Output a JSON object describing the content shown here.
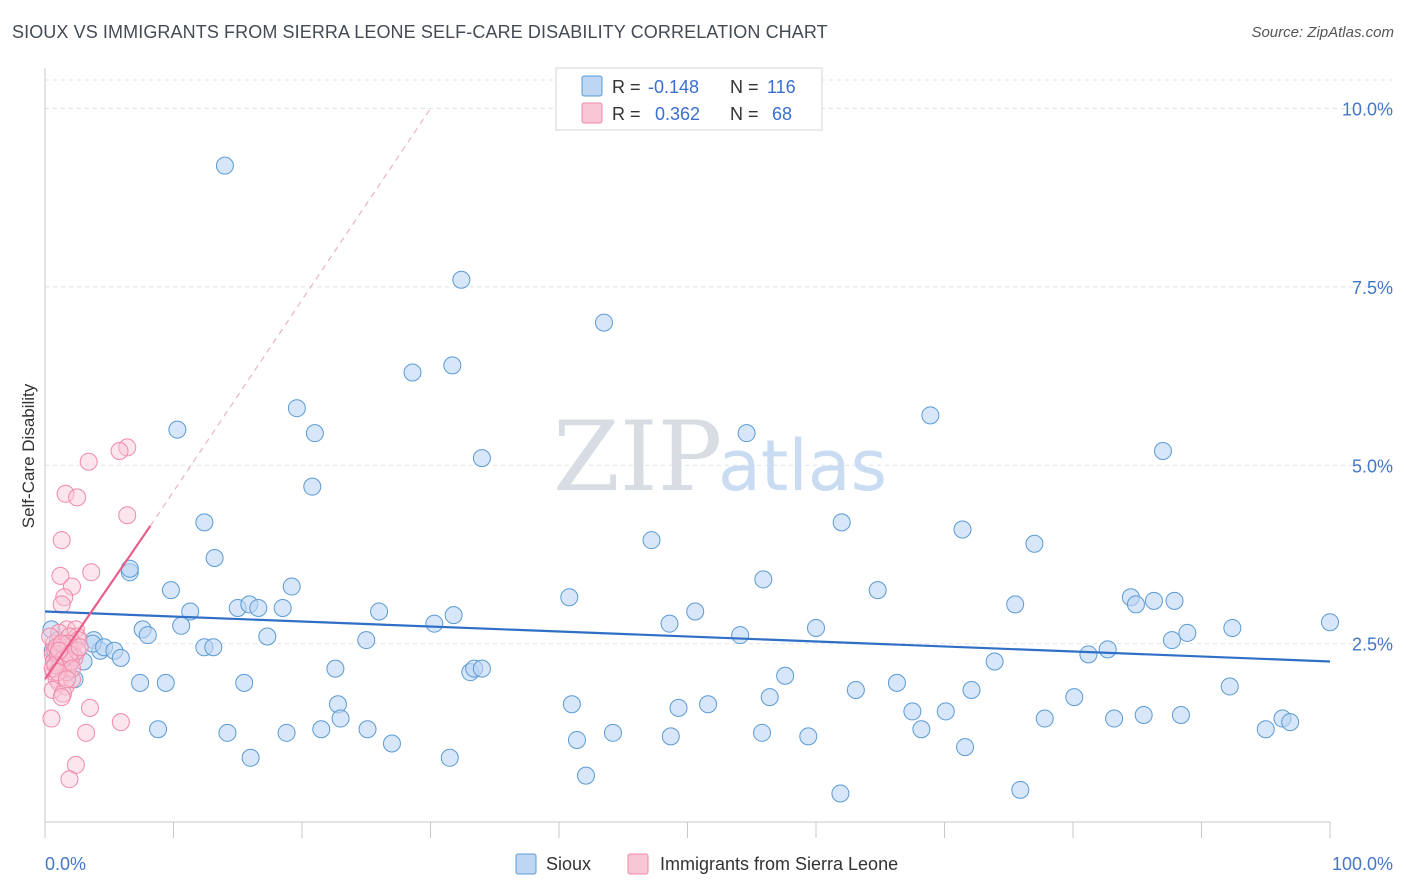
{
  "title": "SIOUX VS IMMIGRANTS FROM SIERRA LEONE SELF-CARE DISABILITY CORRELATION CHART",
  "source": "Source: ZipAtlas.com",
  "watermark": {
    "zip": "ZIP",
    "atlas": "atlas"
  },
  "colors": {
    "sioux": "#5b9bd5",
    "sioux_fill": "#bcd6f3",
    "sl": "#f08aa8",
    "sl_fill": "#f9c6d6",
    "sioux_line": "#2f6fc6",
    "sl_line": "#e8608a"
  },
  "stats": [
    {
      "r_label": "R = ",
      "r": "-0.148",
      "n_label": "N = ",
      "n": "116"
    },
    {
      "r_label": "R = ",
      "r": "0.362",
      "n_label": "N = ",
      "n": "68"
    }
  ],
  "chart_data": {
    "type": "scatter",
    "title": "SIOUX VS IMMIGRANTS FROM SIERRA LEONE SELF-CARE DISABILITY CORRELATION CHART",
    "ylabel": "Self-Care Disability",
    "xlabel": "",
    "xlim": [
      0,
      100
    ],
    "ylim": [
      0,
      10.4
    ],
    "x_tick_labels": [
      "0.0%",
      "100.0%"
    ],
    "y_ticks": [
      2.5,
      5.0,
      7.5,
      10.0
    ],
    "y_tick_labels": [
      "2.5%",
      "5.0%",
      "7.5%",
      "10.0%"
    ],
    "grid": "horizontal dashed",
    "legend": {
      "position": "bottom-center",
      "entries": [
        "Sioux",
        "Immigrants from Sierra Leone"
      ]
    },
    "series": [
      {
        "name": "Sioux",
        "trend": {
          "x": [
            0,
            100
          ],
          "y": [
            2.95,
            2.25
          ]
        },
        "points": [
          [
            14,
            9.2
          ],
          [
            32.4,
            7.6
          ],
          [
            43.5,
            7.0
          ],
          [
            28.6,
            6.3
          ],
          [
            31.7,
            6.4
          ],
          [
            19.6,
            5.8
          ],
          [
            21,
            5.45
          ],
          [
            10.3,
            5.5
          ],
          [
            34,
            5.1
          ],
          [
            54.6,
            5.45
          ],
          [
            68.9,
            5.7
          ],
          [
            87,
            5.2
          ],
          [
            20.8,
            4.7
          ],
          [
            12.4,
            4.2
          ],
          [
            47.2,
            3.95
          ],
          [
            62,
            4.2
          ],
          [
            71.4,
            4.1
          ],
          [
            77,
            3.9
          ],
          [
            13.2,
            3.7
          ],
          [
            6.6,
            3.5
          ],
          [
            6.6,
            3.55
          ],
          [
            9.8,
            3.25
          ],
          [
            19.2,
            3.3
          ],
          [
            40.8,
            3.15
          ],
          [
            55.9,
            3.4
          ],
          [
            64.8,
            3.25
          ],
          [
            75.5,
            3.05
          ],
          [
            84.5,
            3.15
          ],
          [
            84.9,
            3.05
          ],
          [
            86.3,
            3.1
          ],
          [
            87.9,
            3.1
          ],
          [
            11.3,
            2.95
          ],
          [
            15,
            3.0
          ],
          [
            15.9,
            3.05
          ],
          [
            16.6,
            3.0
          ],
          [
            18.5,
            3.0
          ],
          [
            26,
            2.95
          ],
          [
            31.8,
            2.9
          ],
          [
            50.6,
            2.95
          ],
          [
            3.8,
            2.55
          ],
          [
            7.6,
            2.7
          ],
          [
            8,
            2.62
          ],
          [
            10.6,
            2.75
          ],
          [
            17.3,
            2.6
          ],
          [
            30.3,
            2.78
          ],
          [
            48.6,
            2.78
          ],
          [
            54.1,
            2.62
          ],
          [
            60,
            2.72
          ],
          [
            88.9,
            2.65
          ],
          [
            92.4,
            2.72
          ],
          [
            100,
            2.8
          ],
          [
            4.3,
            2.4
          ],
          [
            3.7,
            2.5
          ],
          [
            4.6,
            2.45
          ],
          [
            5.4,
            2.4
          ],
          [
            5.9,
            2.3
          ],
          [
            12.4,
            2.45
          ],
          [
            13.1,
            2.45
          ],
          [
            25,
            2.55
          ],
          [
            82.7,
            2.42
          ],
          [
            81.2,
            2.35
          ],
          [
            87.7,
            2.55
          ],
          [
            3,
            2.25
          ],
          [
            2.3,
            2.0
          ],
          [
            7.4,
            1.95
          ],
          [
            9.4,
            1.95
          ],
          [
            15.5,
            1.95
          ],
          [
            22.6,
            2.15
          ],
          [
            33.1,
            2.1
          ],
          [
            33.4,
            2.15
          ],
          [
            34,
            2.15
          ],
          [
            57.6,
            2.05
          ],
          [
            66.3,
            1.95
          ],
          [
            73.9,
            2.25
          ],
          [
            0.5,
            2.7
          ],
          [
            1,
            2.55
          ],
          [
            0.6,
            2.4
          ],
          [
            1,
            2.3
          ],
          [
            1.2,
            2.2
          ],
          [
            22.8,
            1.65
          ],
          [
            41,
            1.65
          ],
          [
            49.3,
            1.6
          ],
          [
            51.6,
            1.65
          ],
          [
            56.4,
            1.75
          ],
          [
            63.1,
            1.85
          ],
          [
            67.5,
            1.55
          ],
          [
            70.1,
            1.55
          ],
          [
            72.1,
            1.85
          ],
          [
            80.1,
            1.75
          ],
          [
            83.2,
            1.45
          ],
          [
            85.5,
            1.5
          ],
          [
            88.4,
            1.5
          ],
          [
            92.2,
            1.9
          ],
          [
            95,
            1.3
          ],
          [
            96.3,
            1.45
          ],
          [
            96.9,
            1.4
          ],
          [
            8.8,
            1.3
          ],
          [
            14.2,
            1.25
          ],
          [
            18.8,
            1.25
          ],
          [
            21.5,
            1.3
          ],
          [
            23,
            1.45
          ],
          [
            25.1,
            1.3
          ],
          [
            27,
            1.1
          ],
          [
            41.4,
            1.15
          ],
          [
            44.2,
            1.25
          ],
          [
            48.7,
            1.2
          ],
          [
            55.8,
            1.25
          ],
          [
            59.4,
            1.2
          ],
          [
            68.2,
            1.3
          ],
          [
            71.6,
            1.05
          ],
          [
            77.8,
            1.45
          ],
          [
            16,
            0.9
          ],
          [
            31.5,
            0.9
          ],
          [
            42.1,
            0.65
          ],
          [
            61.9,
            0.4
          ],
          [
            75.9,
            0.45
          ]
        ]
      },
      {
        "name": "Immigrants from Sierra Leone",
        "trend": {
          "x": [
            0,
            8.2
          ],
          "y": [
            2.0,
            4.15
          ],
          "extended": {
            "x": [
              8.2,
              30
            ],
            "y": [
              4.15,
              10.0
            ]
          }
        },
        "points": [
          [
            6.4,
            5.25
          ],
          [
            5.8,
            5.2
          ],
          [
            3.4,
            5.05
          ],
          [
            1.6,
            4.6
          ],
          [
            2.5,
            4.55
          ],
          [
            6.4,
            4.3
          ],
          [
            1.3,
            3.95
          ],
          [
            1.2,
            3.45
          ],
          [
            3.6,
            3.5
          ],
          [
            2.1,
            3.3
          ],
          [
            1.5,
            3.15
          ],
          [
            1.3,
            3.05
          ],
          [
            1.7,
            2.7
          ],
          [
            1.1,
            2.65
          ],
          [
            2.4,
            2.7
          ],
          [
            2.5,
            2.6
          ],
          [
            2.2,
            2.5
          ],
          [
            0.7,
            2.5
          ],
          [
            0.6,
            2.35
          ],
          [
            1.7,
            2.4
          ],
          [
            2,
            2.45
          ],
          [
            2.2,
            2.35
          ],
          [
            1.8,
            2.3
          ],
          [
            1.6,
            2.25
          ],
          [
            1.9,
            2.2
          ],
          [
            1.4,
            2.15
          ],
          [
            1.2,
            2.2
          ],
          [
            0.7,
            2.1
          ],
          [
            0.9,
            2.0
          ],
          [
            1.1,
            1.95
          ],
          [
            1.6,
            1.9
          ],
          [
            0.6,
            1.85
          ],
          [
            1.4,
            1.8
          ],
          [
            2.1,
            2.0
          ],
          [
            0.4,
            2.6
          ],
          [
            0.8,
            2.4
          ],
          [
            1.3,
            2.45
          ],
          [
            1.9,
            2.6
          ],
          [
            2.3,
            2.3
          ],
          [
            0.7,
            2.25
          ],
          [
            1.4,
            2.35
          ],
          [
            1.7,
            2.1
          ],
          [
            1.1,
            2.3
          ],
          [
            0.9,
            2.45
          ],
          [
            2.6,
            2.55
          ],
          [
            1.6,
            2.4
          ],
          [
            1.2,
            2.25
          ],
          [
            1.0,
            2.35
          ],
          [
            1.8,
            2.5
          ],
          [
            0.6,
            2.15
          ],
          [
            2.0,
            2.25
          ],
          [
            1.5,
            2.3
          ],
          [
            0.8,
            2.2
          ],
          [
            2.5,
            2.4
          ],
          [
            1.3,
            2.5
          ],
          [
            1.9,
            2.35
          ],
          [
            2.7,
            2.45
          ],
          [
            2.1,
            2.15
          ],
          [
            1.0,
            2.1
          ],
          [
            1.7,
            2.0
          ],
          [
            0.5,
            1.45
          ],
          [
            3.5,
            1.6
          ],
          [
            5.9,
            1.4
          ],
          [
            3.2,
            1.25
          ],
          [
            2.4,
            0.8
          ],
          [
            1.9,
            0.6
          ],
          [
            1.3,
            1.75
          ],
          [
            1.1,
            2.4
          ]
        ]
      }
    ]
  }
}
